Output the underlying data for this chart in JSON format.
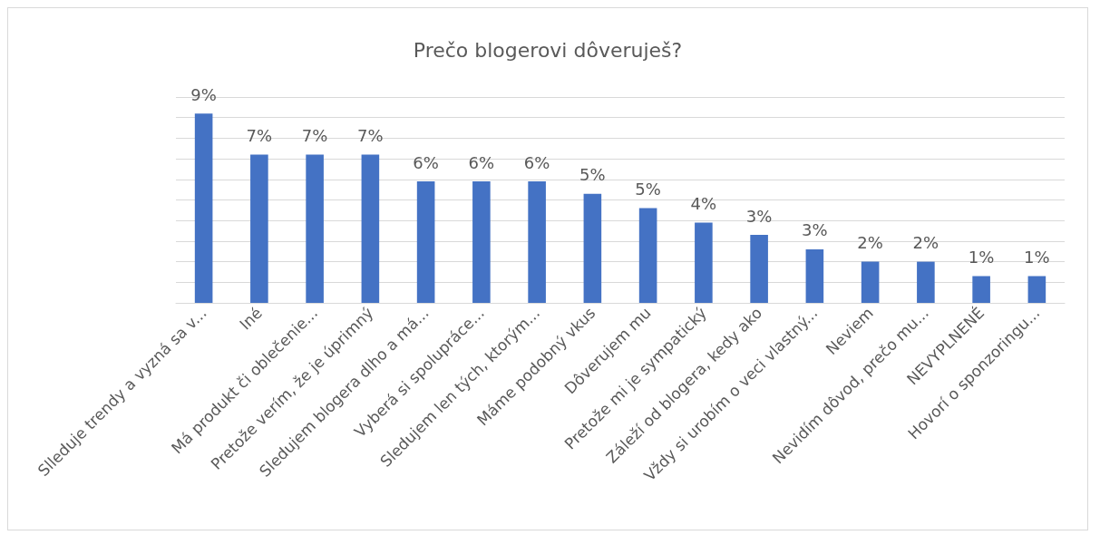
{
  "chart_data": {
    "type": "bar",
    "title": "Prečo blogerovi dôveruješ?",
    "categories": [
      "Slleduje trendy a vyzná sa v...",
      "Iné",
      "Má produkt či oblečenie...",
      "Pretože verím, že je úprimný",
      "Sledujem blogera dlho a má...",
      "Vyberá si spolupráce...",
      "Sledujem len tých, ktorým...",
      "Máme podobný vkus",
      "Dôverujem mu",
      "Pretože mi je sympatický",
      "Záleží od blogera, kedy ako",
      "Vždy si urobím o veci vlastný...",
      "Neviem",
      "Nevidím dôvod, prečo mu...",
      "NEVYPLNENÉ",
      "Hovorí o sponzoringu..."
    ],
    "values": [
      9.2,
      7.2,
      7.2,
      7.2,
      5.9,
      5.9,
      5.9,
      5.3,
      4.6,
      3.9,
      3.3,
      2.6,
      2.0,
      2.0,
      1.3,
      1.3
    ],
    "value_labels": [
      "9%",
      "7%",
      "7%",
      "7%",
      "6%",
      "6%",
      "6%",
      "5%",
      "5%",
      "4%",
      "3%",
      "3%",
      "2%",
      "2%",
      "1%",
      "1%"
    ],
    "color": "#4472c4",
    "ylim": [
      0,
      10
    ],
    "yticks": [
      {
        "value": 0,
        "label": null
      },
      {
        "value": 1,
        "label": null
      },
      {
        "value": 2,
        "label": null
      },
      {
        "value": 3,
        "label": null
      },
      {
        "value": 4,
        "label": null
      },
      {
        "value": 5,
        "label": null
      },
      {
        "value": 6,
        "label": null
      },
      {
        "value": 7,
        "label": null
      },
      {
        "value": 8,
        "label": null
      },
      {
        "value": 9,
        "label": null
      },
      {
        "value": 10,
        "label": null
      }
    ],
    "tick_labels": "x",
    "grid": "y"
  }
}
